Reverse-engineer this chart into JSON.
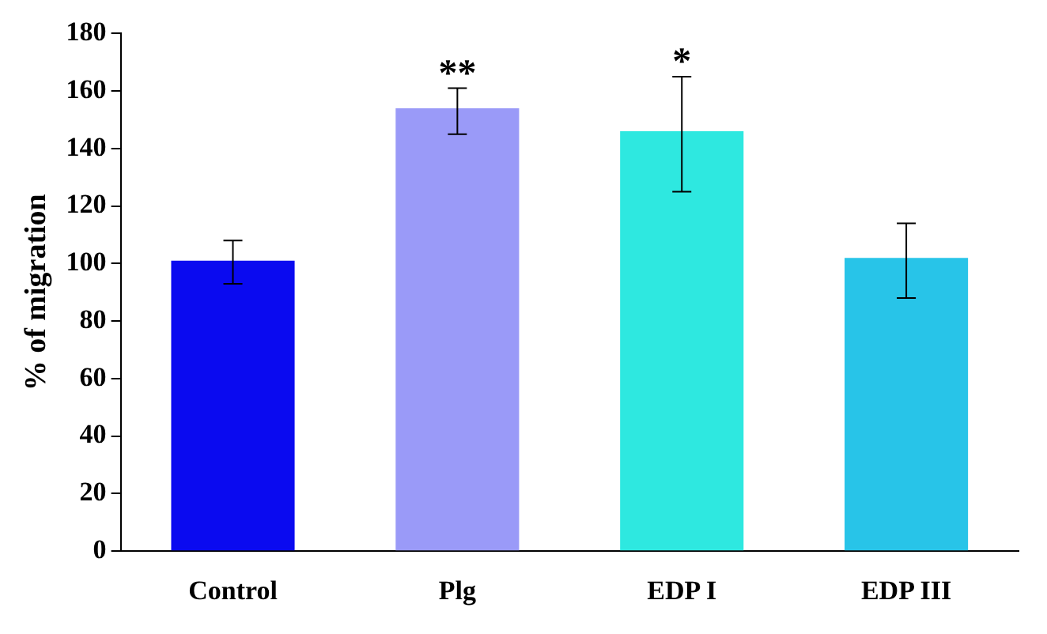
{
  "chart_data": {
    "type": "bar",
    "ylabel": "% of migration",
    "categories": [
      "Control",
      "Plg",
      "EDP I",
      "EDP III"
    ],
    "values": [
      101,
      154,
      146,
      102
    ],
    "colors": [
      "#0a0af0",
      "#9a9af8",
      "#2ee8e0",
      "#28c4e8"
    ],
    "errors": [
      [
        93,
        108
      ],
      [
        145,
        161
      ],
      [
        125,
        165
      ],
      [
        88,
        114
      ]
    ],
    "ylim": [
      0,
      180
    ],
    "yticks": [
      0,
      20,
      40,
      60,
      80,
      100,
      120,
      140,
      160,
      180
    ],
    "grid": false,
    "annotations": [
      {
        "text": "**",
        "x": "Plg",
        "y": 161
      },
      {
        "text": "*",
        "x": "EDP I",
        "y": 165
      }
    ]
  }
}
